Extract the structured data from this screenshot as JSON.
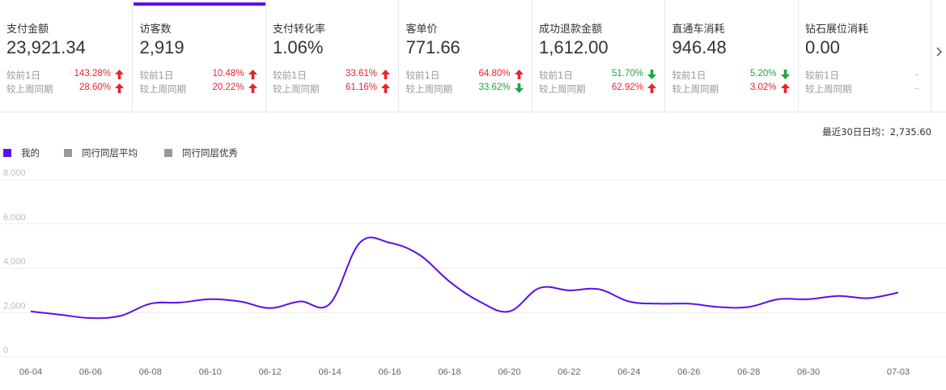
{
  "metrics": [
    {
      "title": "支付金额",
      "value": "23,921.34",
      "r1_label": "较前1日",
      "r1_pct": "143.28%",
      "r1_dir": "up",
      "r2_label": "较上周同期",
      "r2_pct": "28.60%",
      "r2_dir": "up"
    },
    {
      "title": "访客数",
      "value": "2,919",
      "r1_label": "较前1日",
      "r1_pct": "10.48%",
      "r1_dir": "up",
      "r2_label": "较上周同期",
      "r2_pct": "20.22%",
      "r2_dir": "up"
    },
    {
      "title": "支付转化率",
      "value": "1.06%",
      "r1_label": "较前1日",
      "r1_pct": "33.61%",
      "r1_dir": "up",
      "r2_label": "较上周同期",
      "r2_pct": "61.16%",
      "r2_dir": "up"
    },
    {
      "title": "客单价",
      "value": "771.66",
      "r1_label": "较前1日",
      "r1_pct": "64.80%",
      "r1_dir": "up",
      "r2_label": "较上周同期",
      "r2_pct": "33.62%",
      "r2_dir": "down"
    },
    {
      "title": "成功退款金额",
      "value": "1,612.00",
      "r1_label": "较前1日",
      "r1_pct": "51.70%",
      "r1_dir": "down",
      "r2_label": "较上周同期",
      "r2_pct": "62.92%",
      "r2_dir": "up"
    },
    {
      "title": "直通车消耗",
      "value": "946.48",
      "r1_label": "较前1日",
      "r1_pct": "5.20%",
      "r1_dir": "down",
      "r2_label": "较上周同期",
      "r2_pct": "3.02%",
      "r2_dir": "up"
    },
    {
      "title": "钻石展位消耗",
      "value": "0.00",
      "r1_label": "较前1日",
      "r1_pct": "",
      "r1_dir": "none",
      "r2_label": "较上周同期",
      "r2_pct": "",
      "r2_dir": "none"
    }
  ],
  "active_index": 1,
  "dash_text": "–",
  "avg_label": "最近30日日均：",
  "avg_value": "2,735.60",
  "legend": [
    {
      "label": "我的",
      "color": "#5f0fe6"
    },
    {
      "label": "同行同层平均",
      "color": "#999999"
    },
    {
      "label": "同行同层优秀",
      "color": "#999999"
    }
  ],
  "colors": {
    "up": "#e8242b",
    "down": "#1da642",
    "line": "#5f0fe6",
    "grid": "#eeeeee"
  },
  "icons": {
    "next": "chevron-right-icon",
    "up": "arrow-up-icon",
    "down": "arrow-down-icon"
  },
  "chart_data": {
    "type": "line",
    "ylim": [
      0,
      8000
    ],
    "yticks": [
      "8,000",
      "6,000",
      "4,000",
      "2,000",
      "0"
    ],
    "ytick_values": [
      8000,
      6000,
      4000,
      2000,
      0
    ],
    "xticks": [
      "06-04",
      "06-06",
      "06-08",
      "06-10",
      "06-12",
      "06-14",
      "06-16",
      "06-18",
      "06-20",
      "06-22",
      "06-24",
      "06-26",
      "06-28",
      "06-30",
      "07-03"
    ],
    "xtick_days": [
      0,
      2,
      4,
      6,
      8,
      10,
      12,
      14,
      16,
      18,
      20,
      22,
      24,
      26,
      29
    ],
    "series": [
      {
        "name": "我的",
        "x": [
          "06-04",
          "06-05",
          "06-06",
          "06-07",
          "06-08",
          "06-09",
          "06-10",
          "06-11",
          "06-12",
          "06-13",
          "06-14",
          "06-15",
          "06-16",
          "06-17",
          "06-18",
          "06-19",
          "06-20",
          "06-21",
          "06-22",
          "06-23",
          "06-24",
          "06-25",
          "06-26",
          "06-27",
          "06-28",
          "06-29",
          "06-30",
          "07-01",
          "07-02",
          "07-03"
        ],
        "values": [
          2050,
          1900,
          1750,
          1850,
          2400,
          2450,
          2600,
          2500,
          2200,
          2500,
          2400,
          5150,
          5150,
          4600,
          3400,
          2500,
          2050,
          3100,
          3000,
          3050,
          2500,
          2400,
          2400,
          2250,
          2250,
          2600,
          2600,
          2750,
          2650,
          2900
        ]
      }
    ]
  }
}
